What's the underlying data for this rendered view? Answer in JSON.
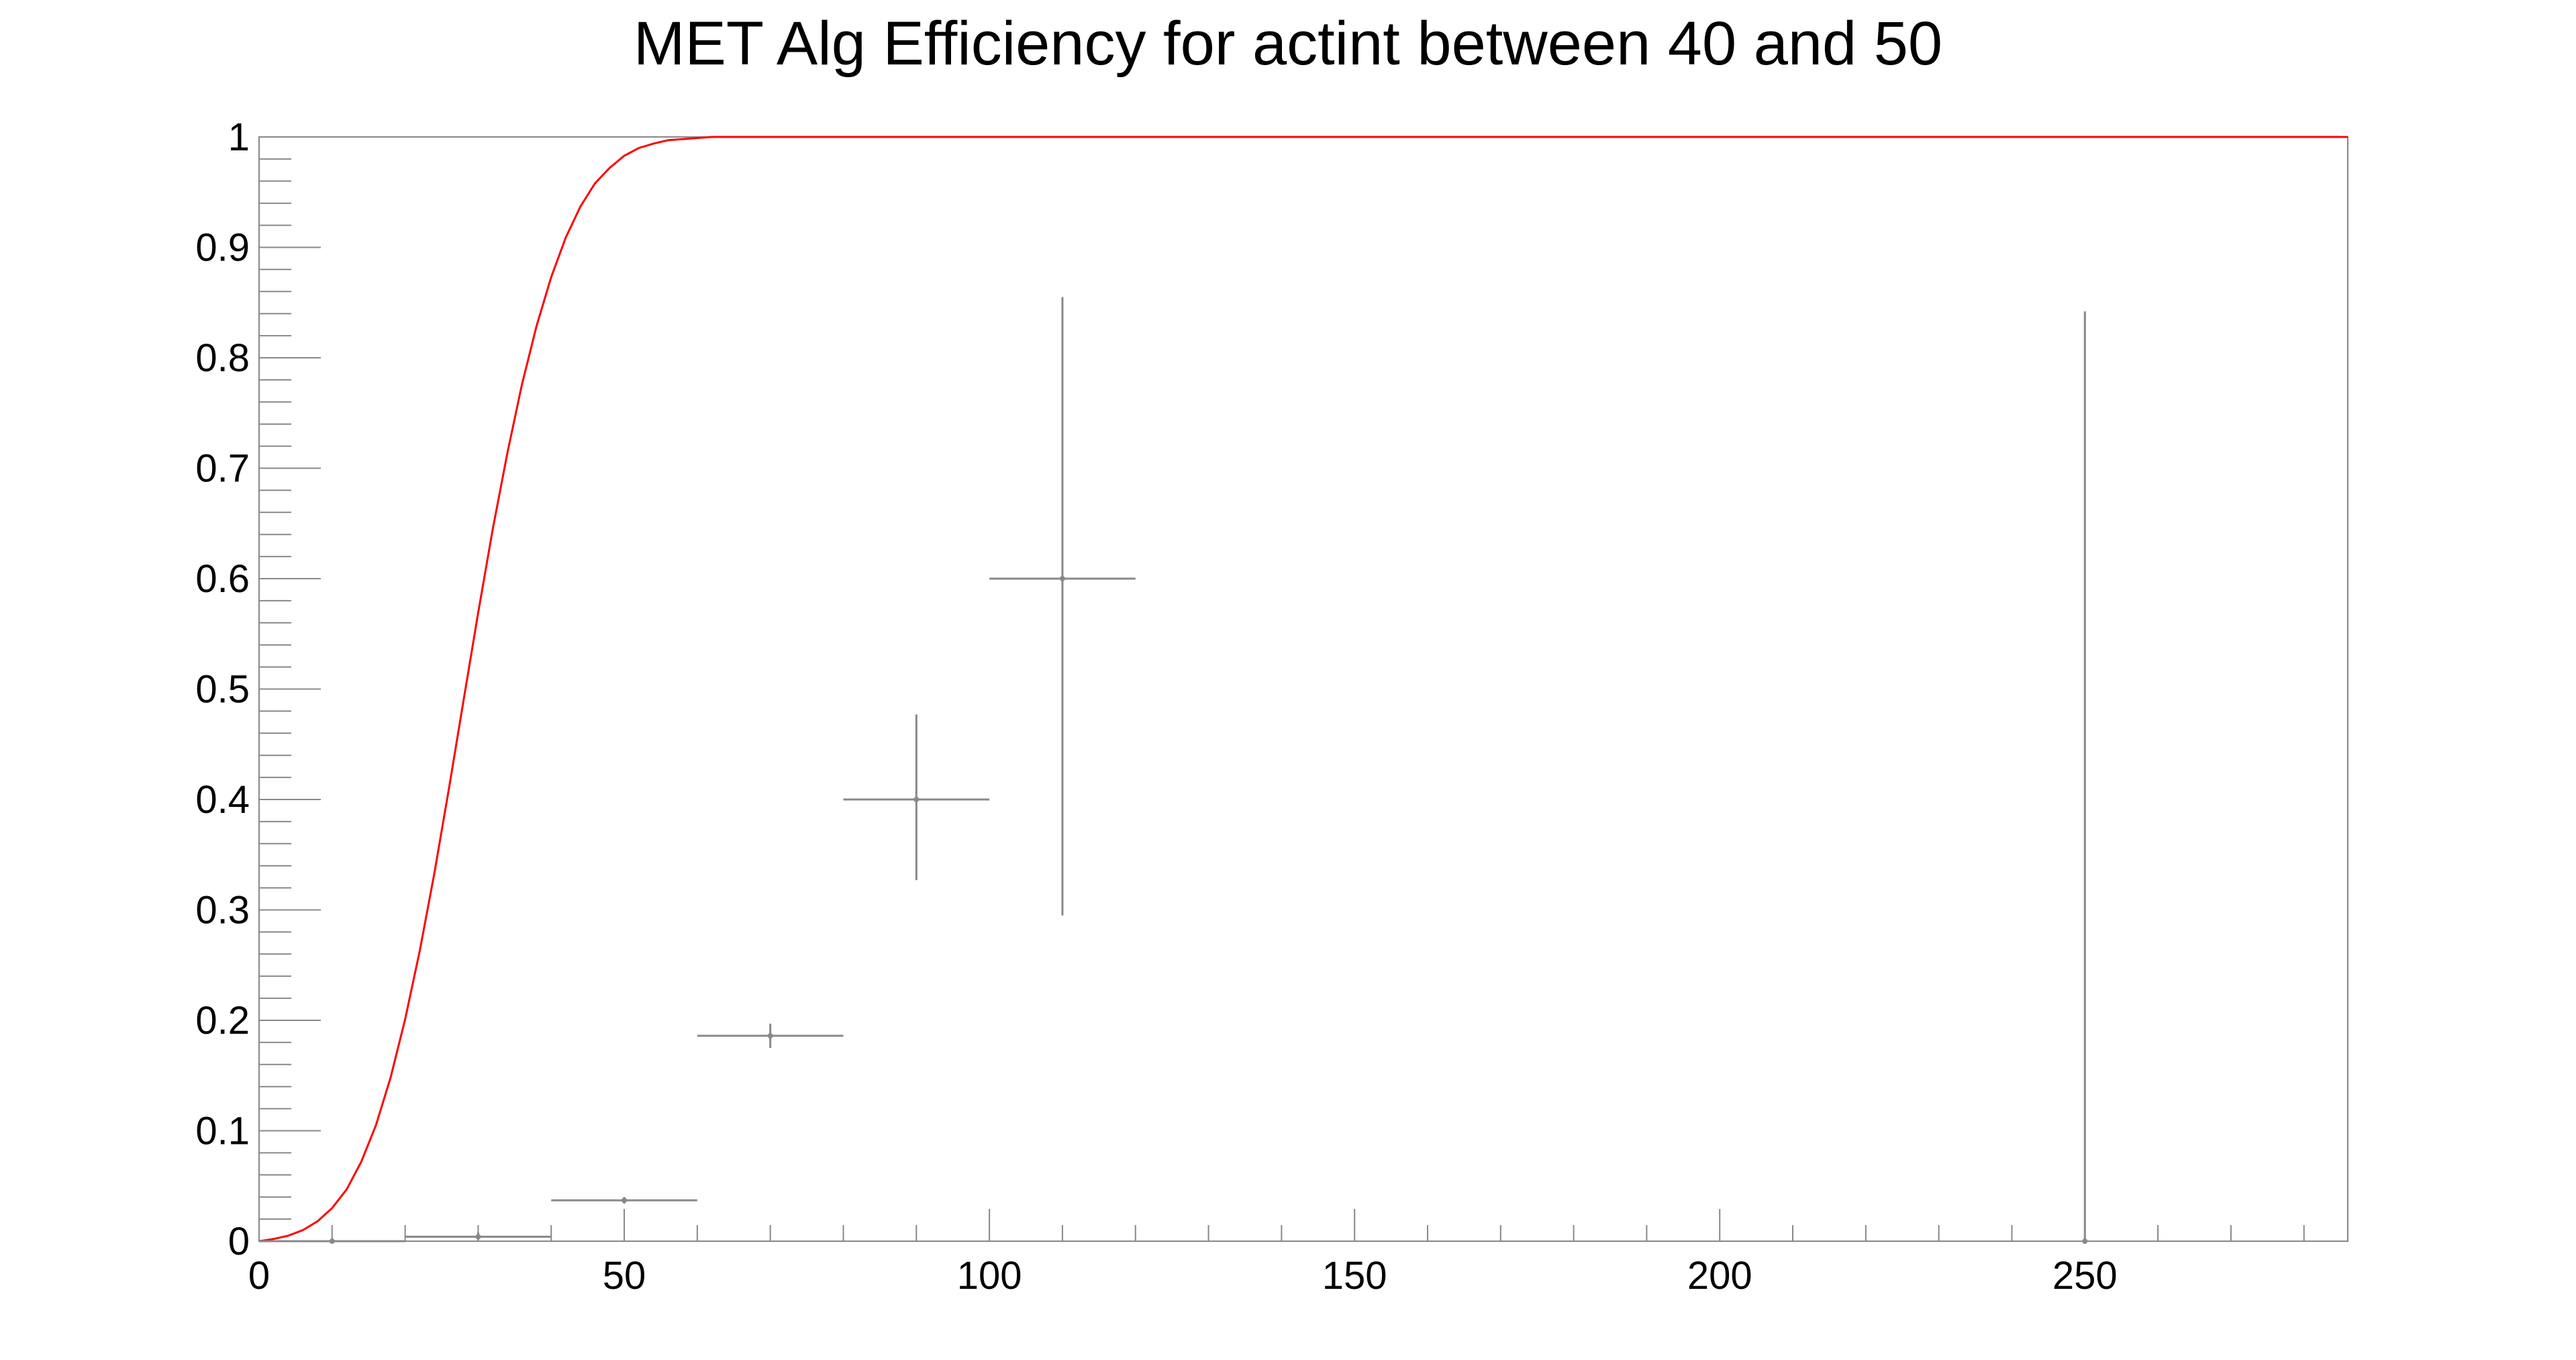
{
  "chart_data": {
    "type": "scatter",
    "title": "MET Alg Efficiency for actint between 40 and 50",
    "xlabel": "",
    "ylabel": "",
    "xlim": [
      0,
      286
    ],
    "ylim": [
      0,
      1
    ],
    "grid": false,
    "x_tick_labels": [
      "0",
      "50",
      "100",
      "150",
      "200",
      "250"
    ],
    "y_tick_labels": [
      "0",
      "0.1",
      "0.2",
      "0.3",
      "0.4",
      "0.5",
      "0.6",
      "0.7",
      "0.8",
      "0.9",
      "1"
    ],
    "colors": {
      "points": "#888888",
      "curve": "#ff0000",
      "frame": "#888888"
    },
    "series": [
      {
        "type": "errorbar",
        "points": [
          {
            "x": 10,
            "y": 0.0,
            "xerr": 10,
            "yerr_low": 0.0,
            "yerr_high": 0.001
          },
          {
            "x": 30,
            "y": 0.004,
            "xerr": 10,
            "yerr_low": 0.003,
            "yerr_high": 0.004
          },
          {
            "x": 50,
            "y": 0.037,
            "xerr": 10,
            "yerr_low": 0.003,
            "yerr_high": 0.003
          },
          {
            "x": 70,
            "y": 0.186,
            "xerr": 10,
            "yerr_low": 0.011,
            "yerr_high": 0.011
          },
          {
            "x": 90,
            "y": 0.4,
            "xerr": 10,
            "yerr_low": 0.073,
            "yerr_high": 0.077
          },
          {
            "x": 110,
            "y": 0.6,
            "xerr": 10,
            "yerr_low": 0.305,
            "yerr_high": 0.255
          },
          {
            "x": 250,
            "y": 0.0,
            "xerr": 0,
            "yerr_low": 0.0,
            "yerr_high": 0.842
          }
        ]
      },
      {
        "type": "line",
        "function": "error_function_fit",
        "x": [
          0,
          2,
          4,
          6,
          8,
          10,
          12,
          14,
          16,
          18,
          20,
          22,
          24,
          26,
          28,
          30,
          32,
          34,
          36,
          38,
          40,
          42,
          44,
          46,
          48,
          50,
          52,
          54,
          56,
          58,
          60,
          62,
          64,
          70,
          80,
          100,
          150,
          200,
          250,
          286
        ],
        "y": [
          0.0,
          0.002,
          0.005,
          0.01,
          0.018,
          0.03,
          0.047,
          0.072,
          0.105,
          0.148,
          0.201,
          0.263,
          0.333,
          0.41,
          0.49,
          0.569,
          0.645,
          0.714,
          0.776,
          0.829,
          0.873,
          0.909,
          0.937,
          0.958,
          0.972,
          0.983,
          0.99,
          0.994,
          0.997,
          0.998,
          0.999,
          1.0,
          1.0,
          1.0,
          1.0,
          1.0,
          1.0,
          1.0,
          1.0,
          1.0
        ]
      }
    ]
  }
}
